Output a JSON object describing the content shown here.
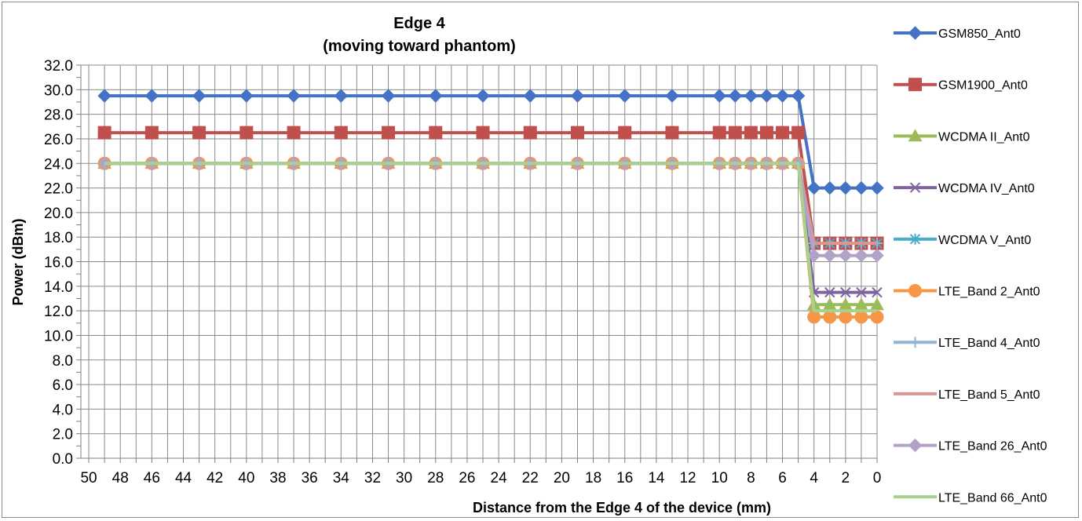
{
  "chart_data": {
    "type": "line",
    "title": "Edge 4",
    "subtitle": "(moving toward phantom)",
    "xlabel": "Distance from the Edge 4 of the device (mm)",
    "ylabel": "Power (dBm)",
    "ylim": [
      0,
      32
    ],
    "y_ticks": [
      "0.0",
      "2.0",
      "4.0",
      "6.0",
      "8.0",
      "10.0",
      "12.0",
      "14.0",
      "16.0",
      "18.0",
      "20.0",
      "22.0",
      "24.0",
      "26.0",
      "28.0",
      "30.0",
      "32.0"
    ],
    "x_tick_labels": [
      "50",
      "48",
      "46",
      "44",
      "42",
      "40",
      "38",
      "36",
      "34",
      "32",
      "30",
      "28",
      "26",
      "24",
      "22",
      "20",
      "18",
      "16",
      "14",
      "12",
      "10",
      "8",
      "6",
      "4",
      "2",
      "0"
    ],
    "x_reversed": true,
    "grid": true,
    "legend_position": "right",
    "x": [
      49,
      46,
      43,
      40,
      37,
      34,
      31,
      28,
      25,
      22,
      19,
      16,
      13,
      10,
      9,
      8,
      7,
      6,
      5,
      4,
      3,
      2,
      1,
      0
    ],
    "series": [
      {
        "name": "GSM850_Ant0",
        "color": "#4472C4",
        "marker": "diamond",
        "values": [
          29.5,
          29.5,
          29.5,
          29.5,
          29.5,
          29.5,
          29.5,
          29.5,
          29.5,
          29.5,
          29.5,
          29.5,
          29.5,
          29.5,
          29.5,
          29.5,
          29.5,
          29.5,
          29.5,
          22.0,
          22.0,
          22.0,
          22.0,
          22.0
        ]
      },
      {
        "name": "GSM1900_Ant0",
        "color": "#C0504D",
        "marker": "square",
        "values": [
          26.5,
          26.5,
          26.5,
          26.5,
          26.5,
          26.5,
          26.5,
          26.5,
          26.5,
          26.5,
          26.5,
          26.5,
          26.5,
          26.5,
          26.5,
          26.5,
          26.5,
          26.5,
          26.5,
          17.5,
          17.5,
          17.5,
          17.5,
          17.5
        ]
      },
      {
        "name": "WCDMA II_Ant0",
        "color": "#9BBB59",
        "marker": "triangle",
        "values": [
          24.0,
          24.0,
          24.0,
          24.0,
          24.0,
          24.0,
          24.0,
          24.0,
          24.0,
          24.0,
          24.0,
          24.0,
          24.0,
          24.0,
          24.0,
          24.0,
          24.0,
          24.0,
          24.0,
          12.5,
          12.5,
          12.5,
          12.5,
          12.5
        ]
      },
      {
        "name": "WCDMA IV_Ant0",
        "color": "#8064A2",
        "marker": "x",
        "values": [
          24.0,
          24.0,
          24.0,
          24.0,
          24.0,
          24.0,
          24.0,
          24.0,
          24.0,
          24.0,
          24.0,
          24.0,
          24.0,
          24.0,
          24.0,
          24.0,
          24.0,
          24.0,
          24.0,
          13.5,
          13.5,
          13.5,
          13.5,
          13.5
        ]
      },
      {
        "name": "WCDMA V_Ant0",
        "color": "#4BACC6",
        "marker": "star",
        "values": [
          24.0,
          24.0,
          24.0,
          24.0,
          24.0,
          24.0,
          24.0,
          24.0,
          24.0,
          24.0,
          24.0,
          24.0,
          24.0,
          24.0,
          24.0,
          24.0,
          24.0,
          24.0,
          24.0,
          17.5,
          17.5,
          17.5,
          17.5,
          17.5
        ]
      },
      {
        "name": "LTE_Band 2_Ant0",
        "color": "#F79646",
        "marker": "circle",
        "values": [
          24.0,
          24.0,
          24.0,
          24.0,
          24.0,
          24.0,
          24.0,
          24.0,
          24.0,
          24.0,
          24.0,
          24.0,
          24.0,
          24.0,
          24.0,
          24.0,
          24.0,
          24.0,
          24.0,
          11.5,
          11.5,
          11.5,
          11.5,
          11.5
        ]
      },
      {
        "name": "LTE_Band 4_Ant0",
        "color": "#95B3D7",
        "marker": "plus",
        "values": [
          24.0,
          24.0,
          24.0,
          24.0,
          24.0,
          24.0,
          24.0,
          24.0,
          24.0,
          24.0,
          24.0,
          24.0,
          24.0,
          24.0,
          24.0,
          24.0,
          24.0,
          24.0,
          24.0,
          17.5,
          17.5,
          17.5,
          17.5,
          17.5
        ]
      },
      {
        "name": "LTE_Band 5_Ant0",
        "color": "#D99694",
        "marker": "none",
        "values": [
          24.0,
          24.0,
          24.0,
          24.0,
          24.0,
          24.0,
          24.0,
          24.0,
          24.0,
          24.0,
          24.0,
          24.0,
          24.0,
          24.0,
          24.0,
          24.0,
          24.0,
          24.0,
          24.0,
          17.5,
          17.5,
          17.5,
          17.5,
          17.5
        ]
      },
      {
        "name": "LTE_Band 26_Ant0",
        "color": "#B3A2C7",
        "marker": "diamond",
        "values": [
          24.0,
          24.0,
          24.0,
          24.0,
          24.0,
          24.0,
          24.0,
          24.0,
          24.0,
          24.0,
          24.0,
          24.0,
          24.0,
          24.0,
          24.0,
          24.0,
          24.0,
          24.0,
          24.0,
          16.5,
          16.5,
          16.5,
          16.5,
          16.5
        ]
      },
      {
        "name": "LTE_Band 66_Ant0",
        "color": "#A9D18E",
        "marker": "none",
        "values": [
          24.0,
          24.0,
          24.0,
          24.0,
          24.0,
          24.0,
          24.0,
          24.0,
          24.0,
          24.0,
          24.0,
          24.0,
          24.0,
          24.0,
          24.0,
          24.0,
          24.0,
          24.0,
          24.0,
          12.0,
          12.0,
          12.0,
          12.0,
          12.0
        ]
      }
    ]
  }
}
